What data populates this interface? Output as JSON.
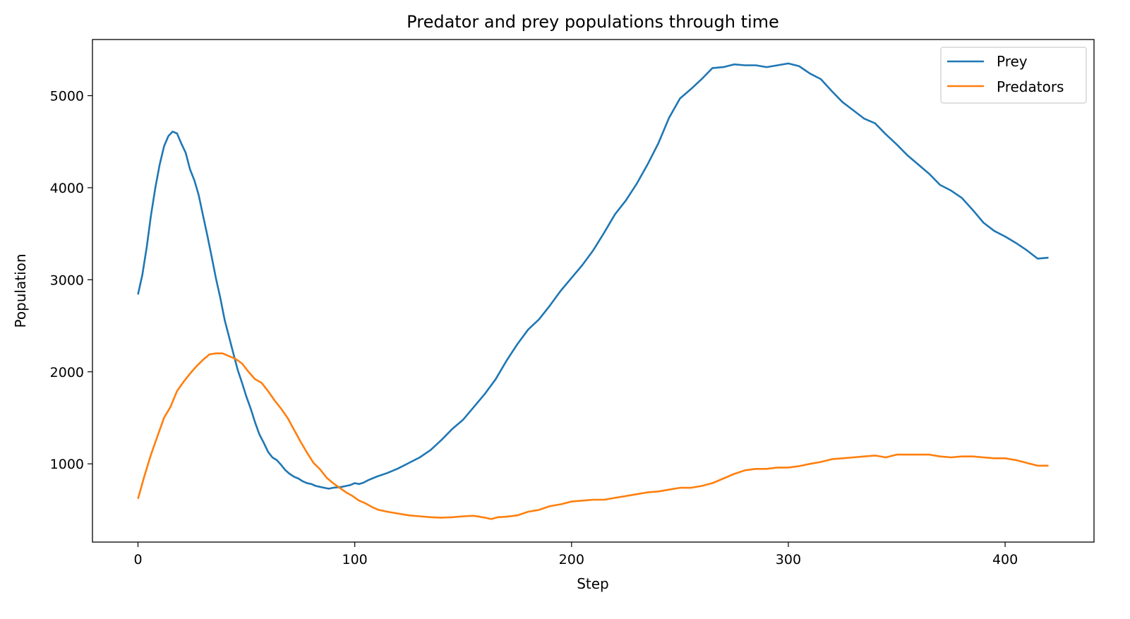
{
  "chart_data": {
    "type": "line",
    "title": "Predator and prey populations through time",
    "xlabel": "Step",
    "ylabel": "Population",
    "xlim": [
      -21,
      441
    ],
    "ylim": [
      150,
      5610
    ],
    "xticks": [
      0,
      100,
      200,
      300,
      400
    ],
    "yticks": [
      1000,
      2000,
      3000,
      4000,
      5000
    ],
    "grid": false,
    "legend_position": "top-right",
    "series": [
      {
        "name": "Prey",
        "color": "#1f77b4",
        "points": [
          [
            0,
            2840
          ],
          [
            2,
            3050
          ],
          [
            4,
            3350
          ],
          [
            6,
            3700
          ],
          [
            8,
            4000
          ],
          [
            10,
            4250
          ],
          [
            12,
            4450
          ],
          [
            14,
            4560
          ],
          [
            16,
            4610
          ],
          [
            18,
            4590
          ],
          [
            20,
            4480
          ],
          [
            22,
            4380
          ],
          [
            24,
            4200
          ],
          [
            26,
            4080
          ],
          [
            28,
            3920
          ],
          [
            30,
            3700
          ],
          [
            32,
            3480
          ],
          [
            34,
            3250
          ],
          [
            36,
            3010
          ],
          [
            38,
            2800
          ],
          [
            40,
            2560
          ],
          [
            42,
            2380
          ],
          [
            44,
            2200
          ],
          [
            46,
            2020
          ],
          [
            48,
            1880
          ],
          [
            50,
            1730
          ],
          [
            52,
            1600
          ],
          [
            54,
            1450
          ],
          [
            56,
            1320
          ],
          [
            58,
            1230
          ],
          [
            60,
            1130
          ],
          [
            62,
            1070
          ],
          [
            64,
            1040
          ],
          [
            66,
            990
          ],
          [
            68,
            930
          ],
          [
            70,
            890
          ],
          [
            72,
            860
          ],
          [
            74,
            840
          ],
          [
            76,
            810
          ],
          [
            78,
            790
          ],
          [
            80,
            780
          ],
          [
            82,
            760
          ],
          [
            84,
            750
          ],
          [
            86,
            740
          ],
          [
            88,
            730
          ],
          [
            90,
            740
          ],
          [
            92,
            745
          ],
          [
            94,
            750
          ],
          [
            96,
            760
          ],
          [
            98,
            770
          ],
          [
            100,
            790
          ],
          [
            102,
            780
          ],
          [
            104,
            795
          ],
          [
            106,
            820
          ],
          [
            108,
            840
          ],
          [
            110,
            860
          ],
          [
            115,
            900
          ],
          [
            120,
            950
          ],
          [
            125,
            1010
          ],
          [
            130,
            1070
          ],
          [
            135,
            1150
          ],
          [
            140,
            1260
          ],
          [
            145,
            1380
          ],
          [
            150,
            1480
          ],
          [
            155,
            1620
          ],
          [
            160,
            1760
          ],
          [
            165,
            1920
          ],
          [
            170,
            2120
          ],
          [
            175,
            2300
          ],
          [
            180,
            2460
          ],
          [
            185,
            2570
          ],
          [
            190,
            2720
          ],
          [
            195,
            2880
          ],
          [
            200,
            3020
          ],
          [
            205,
            3160
          ],
          [
            210,
            3320
          ],
          [
            215,
            3510
          ],
          [
            220,
            3710
          ],
          [
            225,
            3860
          ],
          [
            230,
            4040
          ],
          [
            235,
            4250
          ],
          [
            240,
            4480
          ],
          [
            245,
            4760
          ],
          [
            250,
            4970
          ],
          [
            255,
            5070
          ],
          [
            260,
            5180
          ],
          [
            265,
            5300
          ],
          [
            270,
            5310
          ],
          [
            275,
            5340
          ],
          [
            280,
            5330
          ],
          [
            285,
            5330
          ],
          [
            290,
            5310
          ],
          [
            295,
            5330
          ],
          [
            300,
            5350
          ],
          [
            305,
            5320
          ],
          [
            310,
            5240
          ],
          [
            315,
            5180
          ],
          [
            320,
            5050
          ],
          [
            325,
            4930
          ],
          [
            330,
            4840
          ],
          [
            335,
            4750
          ],
          [
            340,
            4700
          ],
          [
            345,
            4580
          ],
          [
            350,
            4470
          ],
          [
            355,
            4350
          ],
          [
            360,
            4250
          ],
          [
            365,
            4150
          ],
          [
            370,
            4030
          ],
          [
            375,
            3970
          ],
          [
            380,
            3890
          ],
          [
            385,
            3760
          ],
          [
            390,
            3620
          ],
          [
            395,
            3530
          ],
          [
            400,
            3470
          ],
          [
            405,
            3400
          ],
          [
            410,
            3320
          ],
          [
            415,
            3230
          ],
          [
            420,
            3240
          ]
        ]
      },
      {
        "name": "Predators",
        "color": "#ff7f0e",
        "points": [
          [
            0,
            620
          ],
          [
            3,
            870
          ],
          [
            6,
            1100
          ],
          [
            9,
            1300
          ],
          [
            12,
            1500
          ],
          [
            15,
            1620
          ],
          [
            18,
            1790
          ],
          [
            21,
            1890
          ],
          [
            24,
            1980
          ],
          [
            27,
            2060
          ],
          [
            30,
            2130
          ],
          [
            33,
            2190
          ],
          [
            36,
            2200
          ],
          [
            39,
            2200
          ],
          [
            42,
            2170
          ],
          [
            45,
            2140
          ],
          [
            48,
            2090
          ],
          [
            51,
            2000
          ],
          [
            54,
            1920
          ],
          [
            57,
            1880
          ],
          [
            60,
            1790
          ],
          [
            63,
            1690
          ],
          [
            66,
            1600
          ],
          [
            69,
            1500
          ],
          [
            72,
            1370
          ],
          [
            75,
            1240
          ],
          [
            78,
            1120
          ],
          [
            81,
            1010
          ],
          [
            84,
            940
          ],
          [
            87,
            850
          ],
          [
            90,
            790
          ],
          [
            93,
            740
          ],
          [
            96,
            690
          ],
          [
            99,
            650
          ],
          [
            102,
            600
          ],
          [
            105,
            570
          ],
          [
            108,
            530
          ],
          [
            111,
            500
          ],
          [
            115,
            480
          ],
          [
            120,
            460
          ],
          [
            125,
            440
          ],
          [
            130,
            430
          ],
          [
            135,
            420
          ],
          [
            140,
            415
          ],
          [
            145,
            420
          ],
          [
            150,
            430
          ],
          [
            155,
            435
          ],
          [
            160,
            415
          ],
          [
            163,
            400
          ],
          [
            166,
            420
          ],
          [
            170,
            425
          ],
          [
            175,
            440
          ],
          [
            180,
            480
          ],
          [
            185,
            500
          ],
          [
            190,
            540
          ],
          [
            195,
            560
          ],
          [
            200,
            590
          ],
          [
            205,
            600
          ],
          [
            210,
            610
          ],
          [
            215,
            610
          ],
          [
            220,
            630
          ],
          [
            225,
            650
          ],
          [
            230,
            670
          ],
          [
            235,
            690
          ],
          [
            240,
            700
          ],
          [
            245,
            720
          ],
          [
            250,
            740
          ],
          [
            255,
            740
          ],
          [
            260,
            760
          ],
          [
            265,
            790
          ],
          [
            270,
            840
          ],
          [
            275,
            890
          ],
          [
            280,
            930
          ],
          [
            285,
            945
          ],
          [
            290,
            945
          ],
          [
            295,
            960
          ],
          [
            300,
            960
          ],
          [
            305,
            975
          ],
          [
            310,
            1000
          ],
          [
            315,
            1020
          ],
          [
            320,
            1050
          ],
          [
            325,
            1060
          ],
          [
            330,
            1070
          ],
          [
            335,
            1080
          ],
          [
            340,
            1090
          ],
          [
            345,
            1070
          ],
          [
            350,
            1100
          ],
          [
            355,
            1100
          ],
          [
            360,
            1100
          ],
          [
            365,
            1100
          ],
          [
            370,
            1080
          ],
          [
            375,
            1070
          ],
          [
            380,
            1080
          ],
          [
            385,
            1080
          ],
          [
            390,
            1070
          ],
          [
            395,
            1060
          ],
          [
            400,
            1060
          ],
          [
            405,
            1040
          ],
          [
            410,
            1010
          ],
          [
            415,
            980
          ],
          [
            420,
            980
          ]
        ]
      }
    ]
  }
}
